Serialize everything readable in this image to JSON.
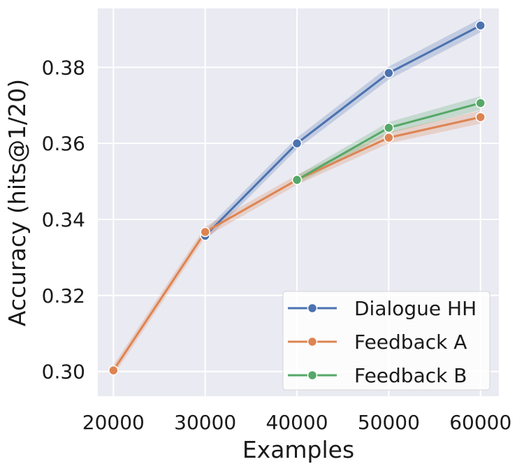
{
  "chart_data": {
    "type": "line",
    "xlabel": "Examples",
    "ylabel": "Accuracy (hits@1/20)",
    "xlim": [
      18300,
      62000
    ],
    "ylim": [
      0.2935,
      0.3955
    ],
    "xticks": [
      20000,
      30000,
      40000,
      50000,
      60000
    ],
    "xtick_labels": [
      "20000",
      "30000",
      "40000",
      "50000",
      "60000"
    ],
    "yticks": [
      0.3,
      0.32,
      0.34,
      0.36,
      0.38
    ],
    "ytick_labels": [
      "0.30",
      "0.32",
      "0.34",
      "0.36",
      "0.38"
    ],
    "grid": true,
    "legend_position": "bottom-right",
    "background_color": "#eaeaf2",
    "series": [
      {
        "name": "Dialogue HH",
        "color": "#4c72b0",
        "x": [
          30000,
          40000,
          50000,
          60000
        ],
        "y": [
          0.3357,
          0.36,
          0.3785,
          0.391
        ],
        "ci_lower": [
          0.3343,
          0.3585,
          0.3768,
          0.3892
        ],
        "ci_upper": [
          0.3371,
          0.3615,
          0.3802,
          0.3928
        ]
      },
      {
        "name": "Feedback A",
        "color": "#dd8452",
        "x": [
          20000,
          30000,
          40000,
          50000,
          60000
        ],
        "y": [
          0.3003,
          0.3367,
          0.3504,
          0.3615,
          0.3669
        ],
        "ci_lower": [
          0.2989,
          0.3353,
          0.3491,
          0.36,
          0.3652
        ],
        "ci_upper": [
          0.3017,
          0.3381,
          0.3517,
          0.363,
          0.3686
        ]
      },
      {
        "name": "Feedback B",
        "color": "#55a868",
        "x": [
          40000,
          50000,
          60000
        ],
        "y": [
          0.3504,
          0.3641,
          0.3706
        ],
        "ci_lower": [
          0.3492,
          0.3626,
          0.3688
        ],
        "ci_upper": [
          0.3516,
          0.3656,
          0.3724
        ]
      }
    ]
  }
}
